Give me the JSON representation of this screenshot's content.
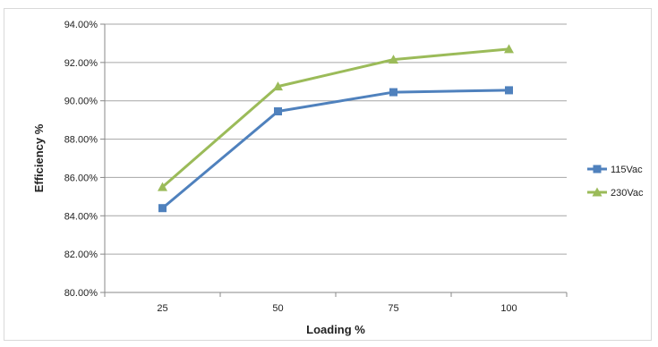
{
  "chart_data": {
    "type": "line",
    "categories": [
      "25",
      "50",
      "75",
      "100"
    ],
    "series": [
      {
        "name": "115Vac",
        "values": [
          84.4,
          89.45,
          90.45,
          90.55
        ],
        "color": "#4f81bd",
        "marker": "square"
      },
      {
        "name": "230Vac",
        "values": [
          85.5,
          90.75,
          92.15,
          92.7
        ],
        "color": "#9bbb59",
        "marker": "triangle"
      }
    ],
    "xlabel": "Loading %",
    "ylabel": "Efficiency %",
    "ylim": [
      80,
      94
    ],
    "y_ticks": [
      "80.00%",
      "82.00%",
      "84.00%",
      "86.00%",
      "88.00%",
      "90.00%",
      "92.00%",
      "94.00%"
    ],
    "grid": true,
    "legend": "right"
  }
}
